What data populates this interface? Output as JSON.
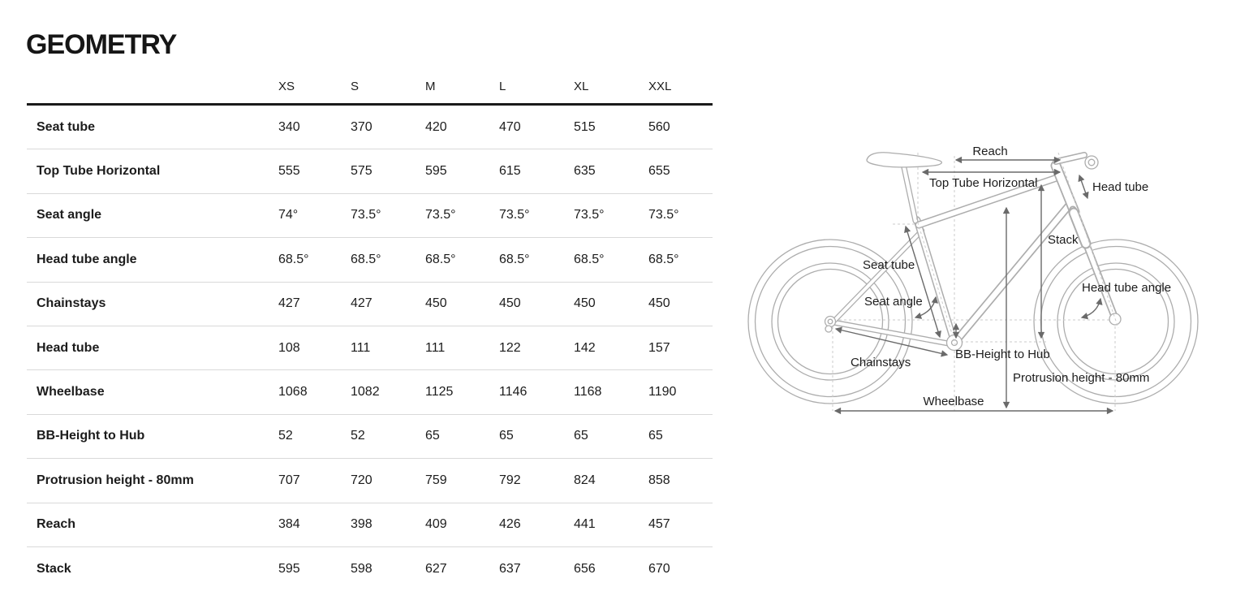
{
  "page": {
    "title": "GEOMETRY"
  },
  "table": {
    "columns": [
      "XS",
      "S",
      "M",
      "L",
      "XL",
      "XXL"
    ],
    "rows": [
      {
        "label": "Seat tube",
        "values": [
          "340",
          "370",
          "420",
          "470",
          "515",
          "560"
        ]
      },
      {
        "label": "Top Tube Horizontal",
        "values": [
          "555",
          "575",
          "595",
          "615",
          "635",
          "655"
        ]
      },
      {
        "label": "Seat angle",
        "values": [
          "74°",
          "73.5°",
          "73.5°",
          "73.5°",
          "73.5°",
          "73.5°"
        ]
      },
      {
        "label": "Head tube angle",
        "values": [
          "68.5°",
          "68.5°",
          "68.5°",
          "68.5°",
          "68.5°",
          "68.5°"
        ]
      },
      {
        "label": "Chainstays",
        "values": [
          "427",
          "427",
          "450",
          "450",
          "450",
          "450"
        ]
      },
      {
        "label": "Head tube",
        "values": [
          "108",
          "111",
          "111",
          "122",
          "142",
          "157"
        ]
      },
      {
        "label": "Wheelbase",
        "values": [
          "1068",
          "1082",
          "1125",
          "1146",
          "1168",
          "1190"
        ]
      },
      {
        "label": "BB-Height to Hub",
        "values": [
          "52",
          "52",
          "65",
          "65",
          "65",
          "65"
        ]
      },
      {
        "label": "Protrusion height - 80mm",
        "values": [
          "707",
          "720",
          "759",
          "792",
          "824",
          "858"
        ]
      },
      {
        "label": "Reach",
        "values": [
          "384",
          "398",
          "409",
          "426",
          "441",
          "457"
        ]
      },
      {
        "label": "Stack",
        "values": [
          "595",
          "598",
          "627",
          "637",
          "656",
          "670"
        ]
      }
    ]
  },
  "diagram": {
    "labels": {
      "reach": "Reach",
      "top_tube_horizontal": "Top Tube Horizontal",
      "head_tube": "Head tube",
      "stack": "Stack",
      "seat_tube": "Seat tube",
      "seat_angle": "Seat angle",
      "head_tube_angle": "Head tube angle",
      "chainstays": "Chainstays",
      "bb_height_to_hub": "BB-Height to Hub",
      "protrusion_height": "Protrusion height - 80mm",
      "wheelbase": "Wheelbase"
    },
    "colors": {
      "bike_line": "#adadad",
      "arrow": "#6a6a6a",
      "dashed_line": "#cbcbcb",
      "text": "#1c1c1c",
      "table_rule": "#d9d9d9",
      "table_header_rule": "#1a1a1a"
    }
  }
}
